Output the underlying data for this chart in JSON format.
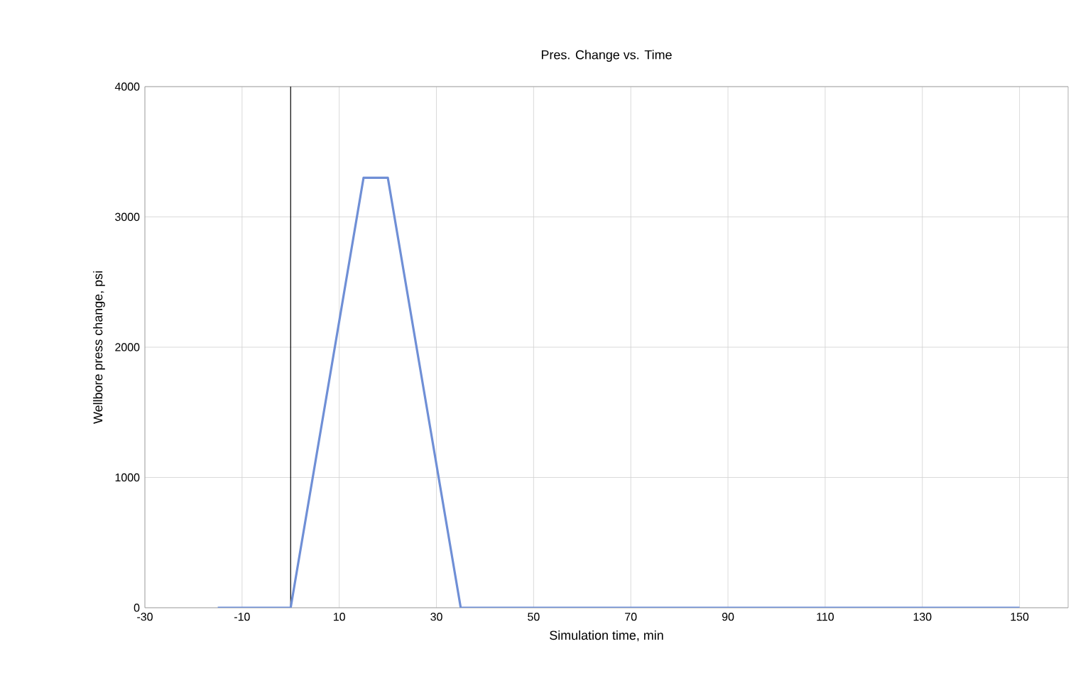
{
  "chart_data": {
    "type": "line",
    "title": "Pres. Change vs. Time",
    "xlabel": "Simulation time, min",
    "ylabel": "Wellbore press change, psi",
    "x": [
      -15,
      0,
      15,
      20,
      35,
      150
    ],
    "series": [
      {
        "color": "#6f8fd6",
        "values": [
          0,
          0,
          3300,
          3300,
          0,
          0
        ]
      }
    ],
    "xlim": [
      -30,
      160
    ],
    "xticks": [
      -30,
      -10,
      10,
      30,
      50,
      70,
      90,
      110,
      130,
      150
    ],
    "ylim": [
      0,
      4000
    ],
    "yticks": [
      0,
      1000,
      2000,
      3000,
      4000
    ],
    "grid": true,
    "marker": "none",
    "line_style": "solid",
    "ref_lines": [
      {
        "axis": "x",
        "value": 0,
        "color": "#000000"
      }
    ]
  }
}
